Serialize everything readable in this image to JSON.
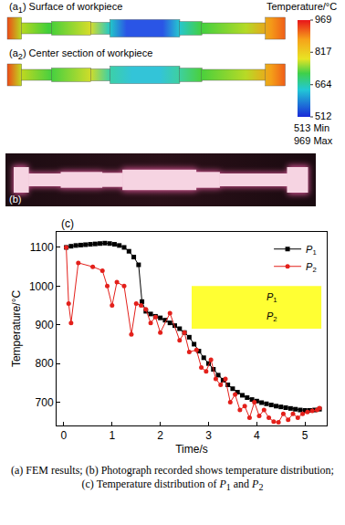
{
  "figure": {
    "panel_a": {
      "a1_label": "(a1) Surface of workpiece",
      "a2_label": "(a2) Center section of workpiece",
      "colorbar": {
        "title": "Temperature/°C",
        "range": [
          512,
          969
        ],
        "ticks": [
          969,
          817,
          664,
          512
        ],
        "min_label": "513 Min",
        "max_label": "969 Max"
      }
    },
    "panel_b_label": "(b)",
    "caption": "(a) FEM results; (b) Photograph recorded shows temperature distribution; (c) Temperature distribution of P1 and P2"
  },
  "chart_data": {
    "type": "line",
    "panel_label": "(c)",
    "x_label": "Time/s",
    "y_label": "Temperature/°C",
    "xlim": [
      -0.15,
      5.45
    ],
    "xticks": [
      0,
      1,
      2,
      3,
      4,
      5
    ],
    "ylim": [
      640,
      1140
    ],
    "yticks": [
      700,
      800,
      900,
      1000,
      1100
    ],
    "grid": false,
    "legend": "upper right",
    "annotations": [
      {
        "text": "P1"
      },
      {
        "text": "P2"
      }
    ],
    "series": [
      {
        "name": "P1",
        "color": "#000000",
        "marker": "square",
        "x": [
          0.05,
          0.15,
          0.25,
          0.35,
          0.45,
          0.55,
          0.65,
          0.75,
          0.85,
          0.95,
          1.05,
          1.15,
          1.25,
          1.35,
          1.45,
          1.55,
          1.62,
          1.7,
          1.8,
          1.9,
          2.0,
          2.1,
          2.2,
          2.3,
          2.4,
          2.5,
          2.6,
          2.7,
          2.8,
          2.9,
          3.0,
          3.1,
          3.2,
          3.3,
          3.4,
          3.5,
          3.6,
          3.7,
          3.8,
          3.9,
          4.0,
          4.1,
          4.2,
          4.3,
          4.4,
          4.5,
          4.6,
          4.7,
          4.8,
          4.9,
          5.0,
          5.1,
          5.2,
          5.3
        ],
        "values": [
          1100,
          1103,
          1105,
          1106,
          1107,
          1108,
          1109,
          1110,
          1111,
          1110,
          1108,
          1105,
          1100,
          1090,
          1075,
          1055,
          960,
          935,
          928,
          922,
          918,
          912,
          905,
          898,
          890,
          880,
          868,
          850,
          832,
          815,
          800,
          785,
          770,
          757,
          745,
          735,
          726,
          718,
          712,
          707,
          703,
          699,
          696,
          693,
          690,
          688,
          686,
          684,
          682,
          680,
          679,
          679,
          680,
          682
        ]
      },
      {
        "name": "P2",
        "color": "#e3201b",
        "marker": "circle",
        "x": [
          0.05,
          0.1,
          0.15,
          0.3,
          0.6,
          0.8,
          0.9,
          1.0,
          1.1,
          1.25,
          1.4,
          1.5,
          1.6,
          1.7,
          1.8,
          1.9,
          2.0,
          2.2,
          2.4,
          2.5,
          2.6,
          2.75,
          2.85,
          2.95,
          3.05,
          3.15,
          3.25,
          3.35,
          3.45,
          3.55,
          3.65,
          3.75,
          3.85,
          3.95,
          4.05,
          4.15,
          4.25,
          4.35,
          4.45,
          4.55,
          4.65,
          4.75,
          4.85,
          4.95,
          5.05,
          5.15,
          5.25,
          5.3
        ],
        "values": [
          1100,
          955,
          905,
          1060,
          1050,
          1040,
          1000,
          950,
          1010,
          1000,
          875,
          955,
          950,
          940,
          905,
          920,
          880,
          930,
          860,
          880,
          830,
          835,
          790,
          780,
          810,
          760,
          745,
          760,
          700,
          720,
          680,
          690,
          660,
          700,
          665,
          680,
          660,
          650,
          648,
          670,
          655,
          670,
          660,
          670,
          675,
          678,
          680,
          685
        ]
      }
    ]
  }
}
